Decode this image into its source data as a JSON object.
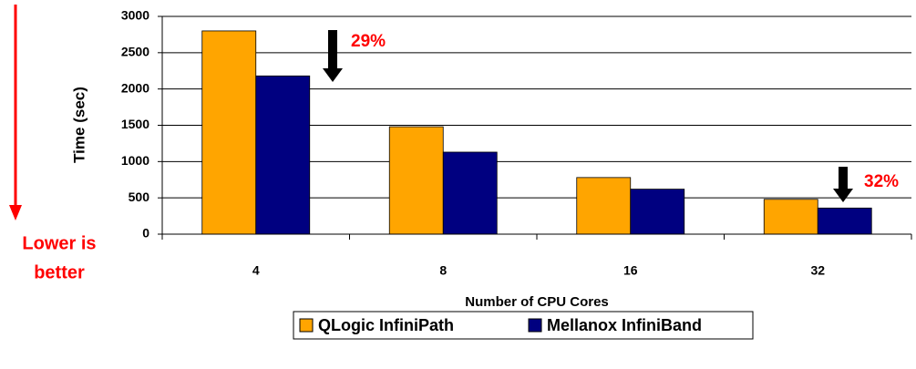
{
  "chart_data": {
    "type": "bar",
    "x_label": "Number of CPU Cores",
    "y_label": "Time (sec)",
    "categories": [
      "4",
      "8",
      "16",
      "32"
    ],
    "series": [
      {
        "name": "QLogic InfiniPath",
        "color": "#ffa500",
        "values": [
          2800,
          1480,
          780,
          480
        ]
      },
      {
        "name": "Mellanox InfiniBand",
        "color": "#000080",
        "values": [
          2180,
          1130,
          620,
          360
        ]
      }
    ],
    "ylim": [
      0,
      3000
    ],
    "yticks": [
      0,
      500,
      1000,
      1500,
      2000,
      2500,
      3000
    ],
    "grid": true,
    "legend": "bottom",
    "annotations": [
      "29%",
      "32%"
    ],
    "side_note": [
      "Lower is",
      "better"
    ]
  }
}
